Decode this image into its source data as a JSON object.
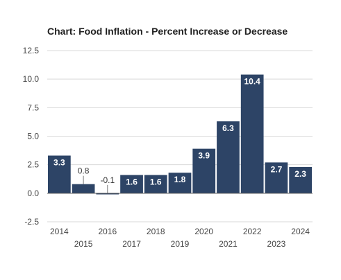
{
  "chart_data": {
    "type": "bar",
    "title": "Chart: Food Inflation - Percent Increase or Decrease",
    "xlabel": "",
    "ylabel": "",
    "categories": [
      "2014",
      "2015",
      "2016",
      "2017",
      "2018",
      "2019",
      "2020",
      "2021",
      "2022",
      "2023",
      "2024"
    ],
    "values": [
      3.3,
      0.8,
      -0.1,
      1.6,
      1.6,
      1.8,
      3.9,
      6.3,
      10.4,
      2.7,
      2.3
    ],
    "data_labels": [
      "3.3",
      "0.8",
      "-0.1",
      "1.6",
      "1.6",
      "1.8",
      "3.9",
      "6.3",
      "10.4",
      "2.7",
      "2.3"
    ],
    "ylim": [
      -2.5,
      12.5
    ],
    "yticks": [
      -2.5,
      0.0,
      2.5,
      5.0,
      7.5,
      10.0,
      12.5
    ],
    "ytick_labels": [
      "-2.5",
      "0.0",
      "2.5",
      "5.0",
      "7.5",
      "10.0",
      "12.5"
    ],
    "x_tick_arrangement": "staggered",
    "grid": true,
    "legend": "none",
    "colors": {
      "bar": "#2d4466",
      "grid": "#d9d9d9",
      "zero_line": "#555555"
    }
  }
}
